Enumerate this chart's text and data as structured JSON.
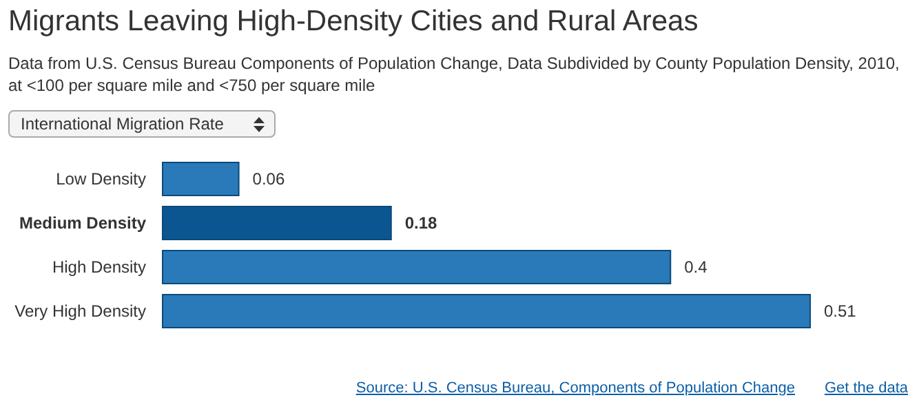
{
  "chart_data": {
    "type": "bar",
    "orientation": "horizontal",
    "title": "Migrants Leaving High-Density Cities and Rural Areas",
    "subtitle": "Data from U.S. Census Bureau Components of Population Change, Data Subdivided by County Population Density, 2010, at <100 per square mile and <750 per square mile",
    "categories": [
      "Low Density",
      "Medium Density",
      "High Density",
      "Very High Density"
    ],
    "values": [
      0.06,
      0.18,
      0.4,
      0.51
    ],
    "colors": [
      "#2a79b9",
      "#0b5690",
      "#2a79b9",
      "#2a79b9"
    ],
    "data_labels": true,
    "annotations": [
      "International Migration Rate",
      "Source: U.S. Census Bureau, Components of Population Change",
      "Get the data"
    ]
  }
}
